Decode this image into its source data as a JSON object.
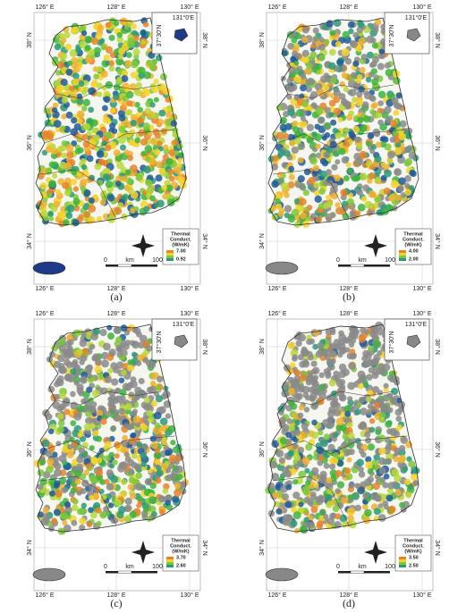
{
  "axes": {
    "lon_labels": [
      "126° E",
      "128° E",
      "130° E"
    ],
    "lat_labels": [
      "38° N",
      "36° N",
      "34° N"
    ]
  },
  "inset": {
    "lon": "131°0'E",
    "lat": "37°30'N"
  },
  "legend_title": [
    "Thermal",
    "Conduct.",
    "(W/mK)"
  ],
  "scale": [
    "0",
    "km",
    "100"
  ],
  "panels": [
    {
      "caption": "(a)",
      "legend_max": "7.00",
      "legend_min": "0.92"
    },
    {
      "caption": "(b)",
      "legend_max": "4.00",
      "legend_min": "2.00"
    },
    {
      "caption": "(c)",
      "legend_max": "3.70",
      "legend_min": "2.60"
    },
    {
      "caption": "(d)",
      "legend_max": "3.50",
      "legend_min": "2.50"
    }
  ]
}
